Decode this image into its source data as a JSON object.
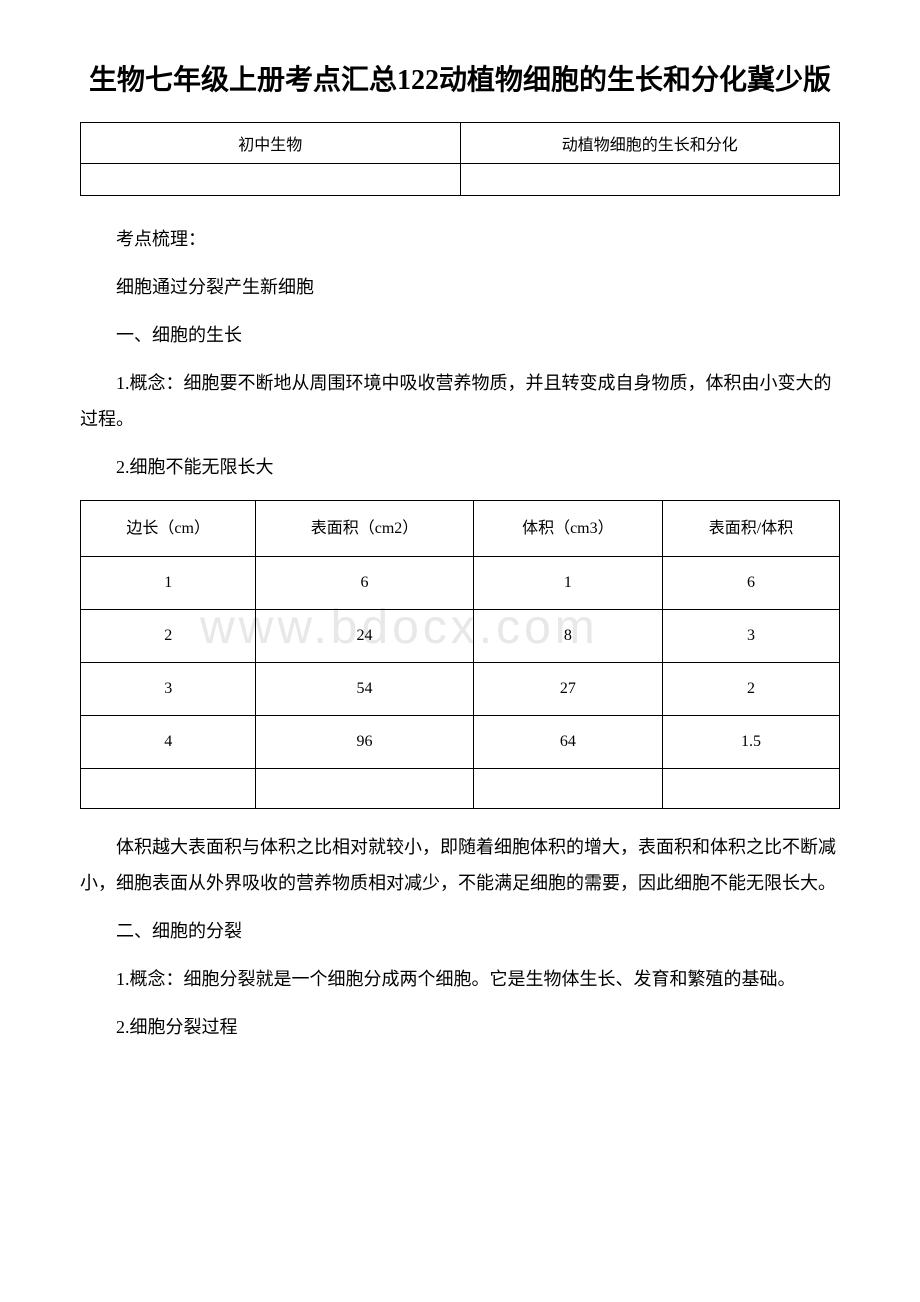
{
  "title": "生物七年级上册考点汇总122动植物细胞的生长和分化冀少版",
  "headerTable": {
    "row1": {
      "col1": "初中生物",
      "col2": "动植物细胞的生长和分化"
    },
    "row2": {
      "col1": "",
      "col2": ""
    }
  },
  "watermark": "www.bdocx.com",
  "sections": {
    "intro": "考点梳理：",
    "subtitle": "细胞通过分裂产生新细胞",
    "part1": {
      "heading": "一、细胞的生长",
      "item1": "1.概念：细胞要不断地从周围环境中吸收营养物质，并且转变成自身物质，体积由小变大的过程。",
      "item2": "2.细胞不能无限长大"
    },
    "dataTable": {
      "headers": {
        "col1": "边长（cm）",
        "col2": "表面积（cm2）",
        "col3": "体积（cm3）",
        "col4": "表面积/体积"
      },
      "rows": [
        {
          "c1": "1",
          "c2": "6",
          "c3": "1",
          "c4": "6"
        },
        {
          "c1": "2",
          "c2": "24",
          "c3": "8",
          "c4": "3"
        },
        {
          "c1": "3",
          "c2": "54",
          "c3": "27",
          "c4": "2"
        },
        {
          "c1": "4",
          "c2": "96",
          "c3": "64",
          "c4": "1.5"
        },
        {
          "c1": "",
          "c2": "",
          "c3": "",
          "c4": ""
        }
      ]
    },
    "explanation": "体积越大表面积与体积之比相对就较小，即随着细胞体积的增大，表面积和体积之比不断减小，细胞表面从外界吸收的营养物质相对减少，不能满足细胞的需要，因此细胞不能无限长大。",
    "part2": {
      "heading": "二、细胞的分裂",
      "item1": "1.概念：细胞分裂就是一个细胞分成两个细胞。它是生物体生长、发育和繁殖的基础。",
      "item2": "2.细胞分裂过程"
    }
  },
  "colors": {
    "background": "#ffffff",
    "text": "#000000",
    "border": "#000000",
    "watermark": "#e8e8e8"
  },
  "typography": {
    "title_fontsize": 28,
    "body_fontsize": 18,
    "table_fontsize": 16,
    "font_family": "SimSun"
  }
}
